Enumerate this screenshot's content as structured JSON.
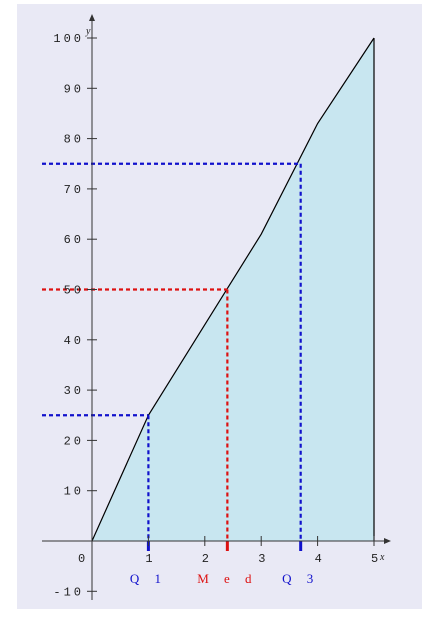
{
  "chart_data": {
    "type": "area",
    "title": "",
    "xlabel": "x",
    "ylabel": "y",
    "xlim": [
      0,
      5
    ],
    "ylim": [
      -10,
      100
    ],
    "x_ticks": [
      "1",
      "2",
      "3",
      "4",
      "5"
    ],
    "y_ticks": [
      "10",
      "20",
      "30",
      "40",
      "50",
      "60",
      "70",
      "80",
      "90",
      "100"
    ],
    "y_ticks_neg": [
      "-10"
    ],
    "origin_label": "0",
    "curve": {
      "x": [
        0,
        1,
        2,
        3,
        4,
        5
      ],
      "y": [
        0,
        25,
        43,
        61,
        83,
        100
      ]
    },
    "quartiles": [
      {
        "label": "Q 1",
        "x": 1.0,
        "y": 25,
        "color": "#1111cc"
      },
      {
        "label": "M e d",
        "x": 2.4,
        "y": 50,
        "color": "#dd1111"
      },
      {
        "label": "Q 3",
        "x": 3.7,
        "y": 75,
        "color": "#1111cc"
      }
    ],
    "fill_color": "#c8e6f0",
    "line_color": "#000000",
    "grid": false
  }
}
